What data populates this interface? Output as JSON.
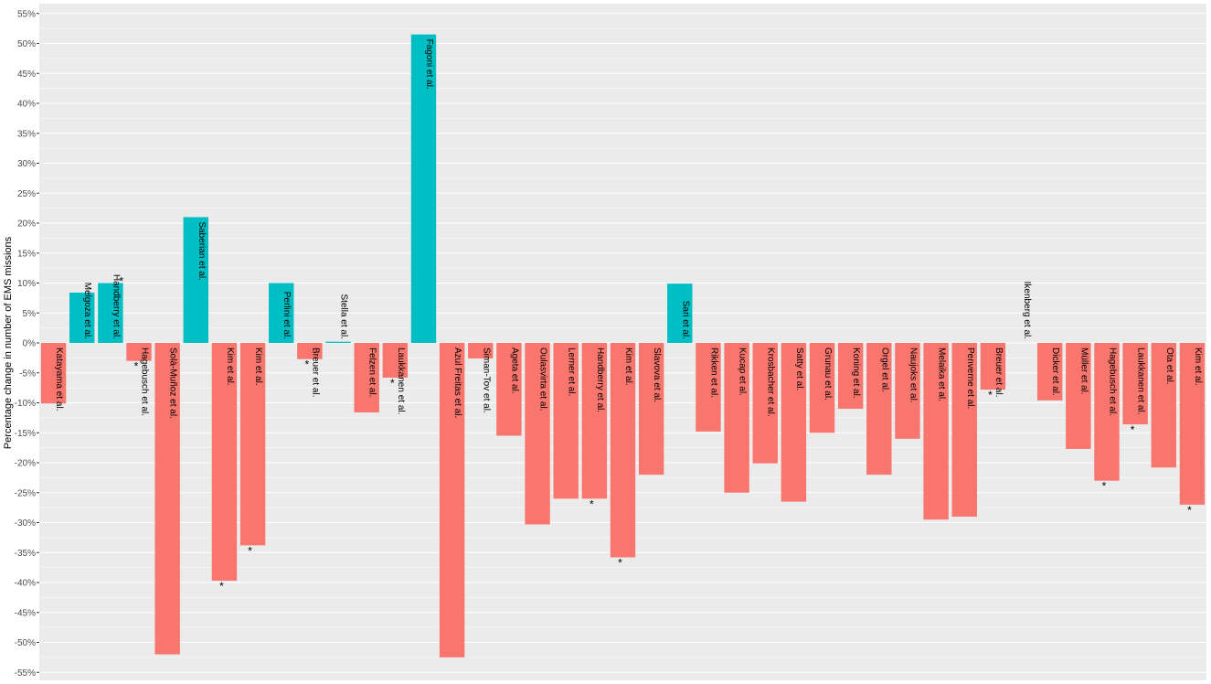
{
  "chart_data": {
    "type": "bar",
    "title": "",
    "xlabel": "",
    "ylabel": "Percentage change in number of EMS missions",
    "ylim": [
      -55,
      55
    ],
    "yticks": [
      55,
      50,
      45,
      40,
      35,
      30,
      25,
      20,
      15,
      10,
      5,
      0,
      -5,
      -10,
      -15,
      -20,
      -25,
      -30,
      -35,
      -40,
      -45,
      -50,
      -55
    ],
    "ytick_labels": [
      "55%",
      "50%",
      "45%",
      "40%",
      "35%",
      "30%",
      "25%",
      "20%",
      "15%",
      "10%",
      "5%",
      "0%",
      "-5%",
      "-10%",
      "-15%",
      "-20%",
      "-25%",
      "-30%",
      "-35%",
      "-40%",
      "-45%",
      "-50%",
      "-55%"
    ],
    "grid": true,
    "colors": {
      "positive": "#00BFC4",
      "negative": "#F8766D",
      "panel": "#EBEBEB",
      "grid": "#FFFFFF"
    },
    "bars": [
      {
        "label": "Katayama et al.",
        "value": -10.1,
        "star": false
      },
      {
        "label": "Melgoza et al.",
        "value": 8.4,
        "star": false
      },
      {
        "label": "Handberry et al.",
        "value": 10.0,
        "star": true
      },
      {
        "label": "Hagebusch et al.",
        "value": -3.0,
        "star": true
      },
      {
        "label": "Solà-Muñoz et al.",
        "value": -52.0,
        "star": false
      },
      {
        "label": "Saberian et al.",
        "value": 21.0,
        "star": false
      },
      {
        "label": "Kim et al.",
        "value": -39.7,
        "star": true
      },
      {
        "label": "Kim et al.",
        "value": -33.8,
        "star": true
      },
      {
        "label": "Perlini et al.",
        "value": 10.0,
        "star": false
      },
      {
        "label": "Breuer et al.",
        "value": -2.7,
        "star": true
      },
      {
        "label": "Stella et al.",
        "value": 0.2,
        "star": false
      },
      {
        "label": "Felzen et al.",
        "value": -11.6,
        "star": false
      },
      {
        "label": "Laukkanen et al.",
        "value": -5.8,
        "star": true
      },
      {
        "label": "Fagoni et al.",
        "value": 51.5,
        "star": false
      },
      {
        "label": "Azul Freitas et al.",
        "value": -52.5,
        "star": false
      },
      {
        "label": "Siman-Tov et al.",
        "value": -2.6,
        "star": false
      },
      {
        "label": "Ageta et al.",
        "value": -15.5,
        "star": false
      },
      {
        "label": "Oulasvirta et al.",
        "value": -30.3,
        "star": false
      },
      {
        "label": "Lerner et al.",
        "value": -26.0,
        "star": false
      },
      {
        "label": "Handberry et al.",
        "value": -26.0,
        "star": true
      },
      {
        "label": "Kim et al.",
        "value": -35.8,
        "star": true
      },
      {
        "label": "Slavova et al.",
        "value": -22.0,
        "star": false
      },
      {
        "label": "Sari et al.",
        "value": 9.9,
        "star": false
      },
      {
        "label": "Rikken et al.",
        "value": -14.8,
        "star": false
      },
      {
        "label": "Kucap et al.",
        "value": -25.0,
        "star": false
      },
      {
        "label": "Krosbacher et al.",
        "value": -20.1,
        "star": false
      },
      {
        "label": "Satty et al.",
        "value": -26.5,
        "star": false
      },
      {
        "label": "Grunau et al.",
        "value": -15.0,
        "star": false
      },
      {
        "label": "Koning et al.",
        "value": -11.0,
        "star": false
      },
      {
        "label": "Orgel et al.",
        "value": -22.0,
        "star": false
      },
      {
        "label": "Naujoks et al.",
        "value": -16.0,
        "star": false
      },
      {
        "label": "Melaika et al.",
        "value": -29.5,
        "star": false
      },
      {
        "label": "Penverne et al.",
        "value": -29.0,
        "star": false
      },
      {
        "label": "Breuer et al.",
        "value": -7.8,
        "star": true
      },
      {
        "label": "Ikenberg et al.",
        "value": 0.0,
        "star": false
      },
      {
        "label": "Dicker et al.",
        "value": -9.6,
        "star": false
      },
      {
        "label": "Müller et al.",
        "value": -17.7,
        "star": false
      },
      {
        "label": "Hagebusch et al.",
        "value": -23.0,
        "star": true
      },
      {
        "label": "Laukkanen et al.",
        "value": -13.6,
        "star": true
      },
      {
        "label": "Ota et al.",
        "value": -20.8,
        "star": false
      },
      {
        "label": "Kim et al.",
        "value": -27.0,
        "star": true
      }
    ]
  }
}
